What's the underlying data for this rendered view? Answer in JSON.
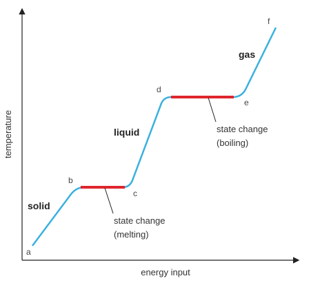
{
  "axes": {
    "x_label": "energy input",
    "y_label": "temperature"
  },
  "points": [
    {
      "label": "a"
    },
    {
      "label": "b"
    },
    {
      "label": "c"
    },
    {
      "label": "d"
    },
    {
      "label": "e"
    },
    {
      "label": "f"
    }
  ],
  "phases": [
    {
      "label": "solid"
    },
    {
      "label": "liquid"
    },
    {
      "label": "gas"
    }
  ],
  "annotations": [
    {
      "lines": [
        "state change",
        "(melting)"
      ]
    },
    {
      "lines": [
        "state change",
        "(boiling)"
      ]
    }
  ]
}
